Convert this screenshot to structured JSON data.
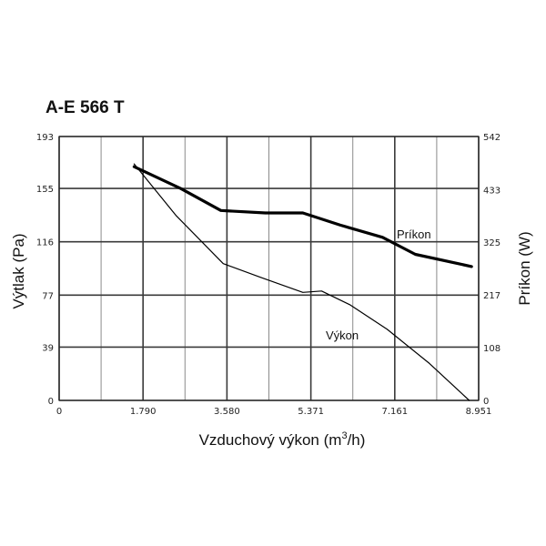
{
  "chart_data": {
    "type": "line",
    "title": "A-E 566 T",
    "xlabel": "Vzduchový výkon (m",
    "xlabel_sup": "3",
    "xlabel_end": "/h)",
    "ylabel": "Výtlak (Pa)",
    "y2label": "Príkon (W)",
    "xlim": [
      0,
      8.951
    ],
    "ylim": [
      0,
      193
    ],
    "y2lim": [
      0,
      542
    ],
    "x_ticks": [
      "0",
      "1.790",
      "3.580",
      "5.371",
      "7.161",
      "8.951"
    ],
    "y_ticks": [
      "0",
      "39",
      "77",
      "116",
      "155",
      "193"
    ],
    "y2_ticks": [
      "0",
      "108",
      "217",
      "325",
      "433",
      "542"
    ],
    "x_tick_values": [
      0,
      1.79,
      3.58,
      5.371,
      7.161,
      8.951
    ],
    "y_tick_values": [
      0,
      39,
      77,
      116,
      155,
      193
    ],
    "y2_tick_values": [
      0,
      108,
      217,
      325,
      433,
      542
    ],
    "grid": true,
    "series": [
      {
        "name": "Príkon",
        "axis": "right",
        "points": [
          [
            1.6,
            480
          ],
          [
            2.6,
            435
          ],
          [
            3.45,
            390
          ],
          [
            4.4,
            385
          ],
          [
            5.2,
            385
          ],
          [
            6.0,
            360
          ],
          [
            6.9,
            335
          ],
          [
            7.6,
            300
          ],
          [
            8.8,
            275
          ]
        ]
      },
      {
        "name": "Výkon",
        "axis": "left",
        "points": [
          [
            1.6,
            173
          ],
          [
            2.5,
            135
          ],
          [
            3.5,
            100
          ],
          [
            4.3,
            90
          ],
          [
            5.2,
            79
          ],
          [
            5.6,
            80
          ],
          [
            6.2,
            70
          ],
          [
            7.0,
            52
          ],
          [
            7.9,
            27
          ],
          [
            8.75,
            0
          ]
        ]
      }
    ]
  }
}
